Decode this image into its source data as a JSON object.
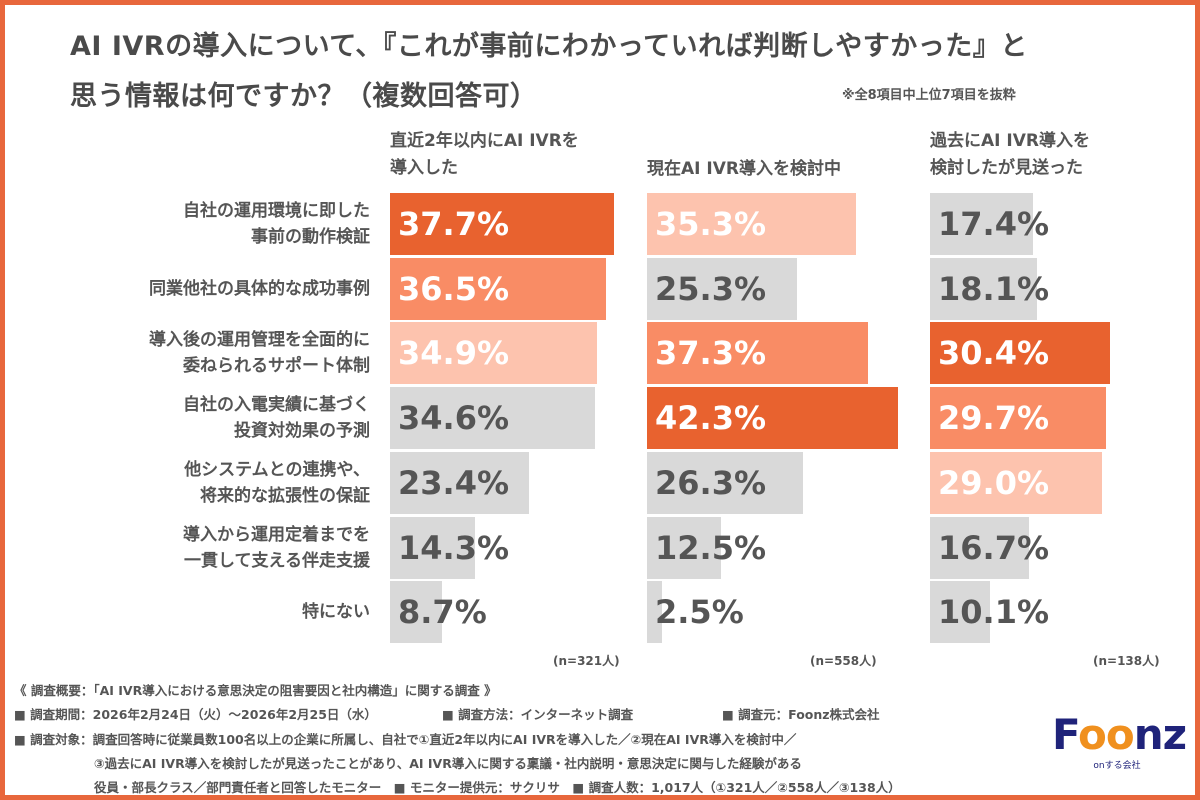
{
  "title_lines": [
    "AI IVRの導入について、『これが事前にわかっていれば判断しやすかった』と",
    "思う情報は何ですか？（複数回答可）"
  ],
  "note": "※全8項目中上位7項目を抜粋",
  "colors": {
    "rank1": "#e8622f",
    "rank2": "#f98c65",
    "rank3": "#fdc3ae",
    "other": "#d9d9d9",
    "border": "#e8673c"
  },
  "chart_data": {
    "type": "bar",
    "orientation": "horizontal",
    "unit": "%",
    "categories": [
      [
        "自社の運用環境に即した",
        "事前の動作検証"
      ],
      [
        "同業他社の具体的な成功事例"
      ],
      [
        "導入後の運用管理を全面的に",
        "委ねられるサポート体制"
      ],
      [
        "自社の入電実績に基づく",
        "投資対効果の予測"
      ],
      [
        "他システムとの連携や、",
        "将来的な拡張性の保証"
      ],
      [
        "導入から運用定着までを",
        "一貫して支える伴走支援"
      ],
      [
        "特にない"
      ]
    ],
    "series": [
      {
        "name_lines": [
          "直近2年以内にAI IVRを",
          "導入した"
        ],
        "n": "(n=321人)",
        "values": [
          37.7,
          36.5,
          34.9,
          34.6,
          23.4,
          14.3,
          8.7
        ]
      },
      {
        "name_lines": [
          "現在AI IVR導入を検討中"
        ],
        "n": "(n=558人)",
        "values": [
          35.3,
          25.3,
          37.3,
          42.3,
          26.3,
          12.5,
          2.5
        ]
      },
      {
        "name_lines": [
          "過去にAI IVR導入を",
          "検討したが見送った"
        ],
        "n": "(n=138人)",
        "values": [
          17.4,
          18.1,
          30.4,
          29.7,
          29.0,
          16.7,
          10.1
        ]
      }
    ],
    "highlight": "top 3 per column colored dark/mid/light orange, others gray"
  },
  "footer": {
    "line1": "《 調査概要：「AI IVR導入における意思決定の阻害要因と社内構造」に関する調査 》",
    "period": "■ 調査期間：2026年2月24日（火）〜2026年2月25日（水）",
    "method": "■ 調査方法：インターネット調査",
    "source": "■ 調査元：Foonz株式会社",
    "target1": "■ 調査対象：調査回答時に従業員数100名以上の企業に所属し、自社で①直近2年以内にAI IVRを導入した／②現在AI IVR導入を検討中／",
    "target2": "③過去にAI IVR導入を検討したが見送ったことがあり、AI IVR導入に関する稟議・社内説明・意思決定に関与した経験がある",
    "target3": "役員・部長クラス／部門責任者と回答したモニター　■ モニター提供元：サクリサ　■ 調査人数：1,017人（①321人／②558人／③138人）"
  },
  "logo": {
    "text": "Foonz",
    "tagline": "onする会社"
  }
}
